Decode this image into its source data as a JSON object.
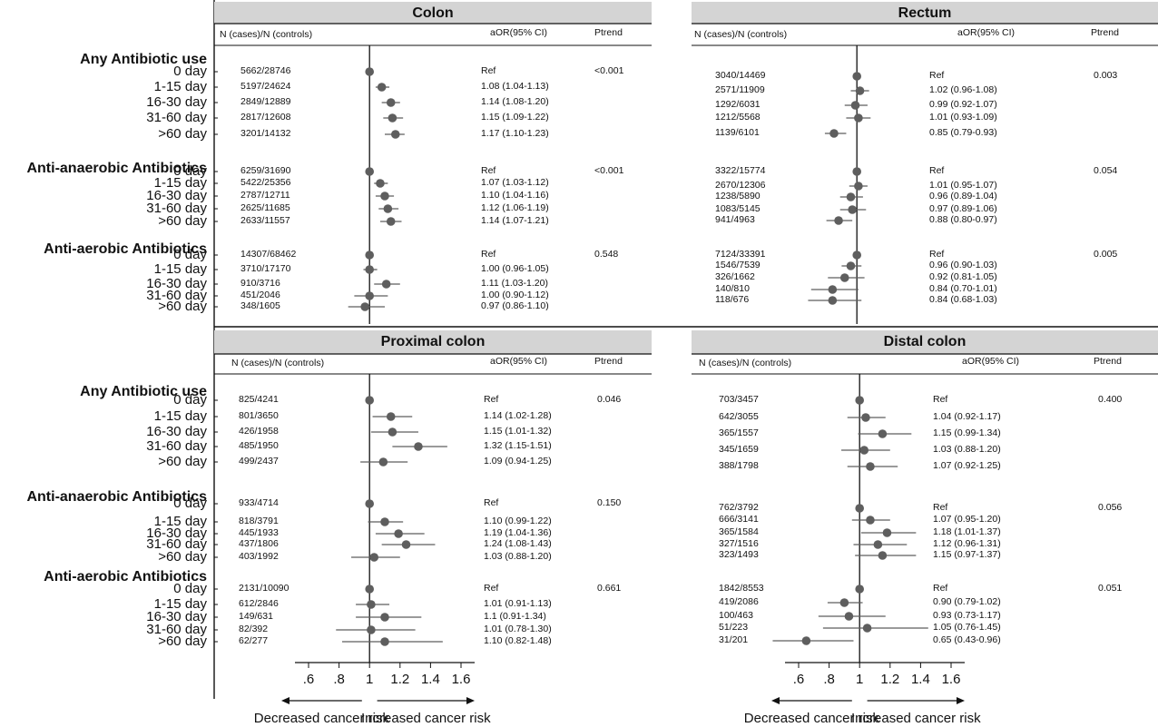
{
  "groups": [
    {
      "label": "Any Antibiotic use",
      "rows": [
        "0 day",
        "1-15 day",
        "16-30 day",
        "31-60 day",
        ">60 day"
      ]
    },
    {
      "label": "Anti-anaerobic Antibiotics",
      "rows": [
        "0 day",
        "1-15 day",
        "16-30 day",
        "31-60 day",
        ">60 day"
      ]
    },
    {
      "label": "Anti-aerobic Antibiotics",
      "rows": [
        "0 day",
        "1-15 day",
        "16-30 day",
        "31-60 day",
        ">60 day"
      ]
    }
  ],
  "headers": {
    "n": "N (cases)/N (controls)",
    "aor": "aOR(95% CI)",
    "ptrend": "Ptrend"
  },
  "x_ticks": [
    ".6",
    ".8",
    "1",
    "1.2",
    "1.4",
    "1.6"
  ],
  "direction": {
    "decreased": "Decreased cancer risk",
    "increased": "Increased cancer risk"
  },
  "colors": {
    "marker": "#5e5e5e",
    "ci_line": "#5e5e5e",
    "title_bar": "#d4d4d4",
    "ref_line": "#111111"
  },
  "chart_data": [
    {
      "type": "scatter",
      "title": "Colon",
      "xlim": [
        0.6,
        1.6
      ],
      "groups": [
        {
          "label": "Any Antibiotic use",
          "ptrend": "<0.001",
          "rows": [
            {
              "label": "0 day",
              "n": "5662/28746",
              "aor_text": "Ref",
              "or": 1.0,
              "lo": null,
              "hi": null
            },
            {
              "label": "1-15 day",
              "n": "5197/24624",
              "aor_text": "1.08 (1.04-1.13)",
              "or": 1.08,
              "lo": 1.04,
              "hi": 1.13
            },
            {
              "label": "16-30 day",
              "n": "2849/12889",
              "aor_text": "1.14 (1.08-1.20)",
              "or": 1.14,
              "lo": 1.08,
              "hi": 1.2
            },
            {
              "label": "31-60 day",
              "n": "2817/12608",
              "aor_text": "1.15 (1.09-1.22)",
              "or": 1.15,
              "lo": 1.09,
              "hi": 1.22
            },
            {
              "label": ">60 day",
              "n": "3201/14132",
              "aor_text": "1.17 (1.10-1.23)",
              "or": 1.17,
              "lo": 1.1,
              "hi": 1.23
            }
          ]
        },
        {
          "label": "Anti-anaerobic Antibiotics",
          "ptrend": "<0.001",
          "rows": [
            {
              "label": "0 day",
              "n": "6259/31690",
              "aor_text": "Ref",
              "or": 1.0,
              "lo": null,
              "hi": null
            },
            {
              "label": "1-15 day",
              "n": "5422/25356",
              "aor_text": "1.07 (1.03-1.12)",
              "or": 1.07,
              "lo": 1.03,
              "hi": 1.12
            },
            {
              "label": "16-30 day",
              "n": "2787/12711",
              "aor_text": "1.10 (1.04-1.16)",
              "or": 1.1,
              "lo": 1.04,
              "hi": 1.16
            },
            {
              "label": "31-60 day",
              "n": "2625/11685",
              "aor_text": "1.12 (1.06-1.19)",
              "or": 1.12,
              "lo": 1.06,
              "hi": 1.19
            },
            {
              "label": ">60 day",
              "n": "2633/11557",
              "aor_text": "1.14 (1.07-1.21)",
              "or": 1.14,
              "lo": 1.07,
              "hi": 1.21
            }
          ]
        },
        {
          "label": "Anti-aerobic Antibiotics",
          "ptrend": "0.548",
          "rows": [
            {
              "label": "0 day",
              "n": "14307/68462",
              "aor_text": "Ref",
              "or": 1.0,
              "lo": null,
              "hi": null
            },
            {
              "label": "1-15 day",
              "n": "3710/17170",
              "aor_text": "1.00 (0.96-1.05)",
              "or": 1.0,
              "lo": 0.96,
              "hi": 1.05
            },
            {
              "label": "16-30 day",
              "n": "910/3716",
              "aor_text": "1.11 (1.03-1.20)",
              "or": 1.11,
              "lo": 1.03,
              "hi": 1.2
            },
            {
              "label": "31-60 day",
              "n": "451/2046",
              "aor_text": "1.00 (0.90-1.12)",
              "or": 1.0,
              "lo": 0.9,
              "hi": 1.12
            },
            {
              "label": ">60 day",
              "n": "348/1605",
              "aor_text": "0.97 (0.86-1.10)",
              "or": 0.97,
              "lo": 0.86,
              "hi": 1.1
            }
          ]
        }
      ]
    },
    {
      "type": "scatter",
      "title": "Rectum",
      "xlim": [
        0.6,
        1.6
      ],
      "groups": [
        {
          "label": "Any Antibiotic use",
          "ptrend": "0.003",
          "rows": [
            {
              "label": "0 day",
              "n": "3040/14469",
              "aor_text": "Ref",
              "or": 1.0,
              "lo": null,
              "hi": null
            },
            {
              "label": "1-15 day",
              "n": "2571/11909",
              "aor_text": "1.02 (0.96-1.08)",
              "or": 1.02,
              "lo": 0.96,
              "hi": 1.08
            },
            {
              "label": "16-30 day",
              "n": "1292/6031",
              "aor_text": "0.99 (0.92-1.07)",
              "or": 0.99,
              "lo": 0.92,
              "hi": 1.07
            },
            {
              "label": "31-60 day",
              "n": "1212/5568",
              "aor_text": "1.01 (0.93-1.09)",
              "or": 1.01,
              "lo": 0.93,
              "hi": 1.09
            },
            {
              "label": ">60 day",
              "n": "1139/6101",
              "aor_text": "0.85 (0.79-0.93)",
              "or": 0.85,
              "lo": 0.79,
              "hi": 0.93
            }
          ]
        },
        {
          "label": "Anti-anaerobic Antibiotics",
          "ptrend": "0.054",
          "rows": [
            {
              "label": "0 day",
              "n": "3322/15774",
              "aor_text": "Ref",
              "or": 1.0,
              "lo": null,
              "hi": null
            },
            {
              "label": "1-15 day",
              "n": "2670/12306",
              "aor_text": "1.01 (0.95-1.07)",
              "or": 1.01,
              "lo": 0.95,
              "hi": 1.07
            },
            {
              "label": "16-30 day",
              "n": "1238/5890",
              "aor_text": "0.96 (0.89-1.04)",
              "or": 0.96,
              "lo": 0.89,
              "hi": 1.04
            },
            {
              "label": "31-60 day",
              "n": "1083/5145",
              "aor_text": "0.97 (0.89-1.06)",
              "or": 0.97,
              "lo": 0.89,
              "hi": 1.06
            },
            {
              "label": ">60 day",
              "n": "941/4963",
              "aor_text": "0.88 (0.80-0.97)",
              "or": 0.88,
              "lo": 0.8,
              "hi": 0.97
            }
          ]
        },
        {
          "label": "Anti-aerobic Antibiotics",
          "ptrend": "0.005",
          "rows": [
            {
              "label": "0 day",
              "n": "7124/33391",
              "aor_text": "Ref",
              "or": 1.0,
              "lo": null,
              "hi": null
            },
            {
              "label": "1-15 day",
              "n": "1546/7539",
              "aor_text": "0.96 (0.90-1.03)",
              "or": 0.96,
              "lo": 0.9,
              "hi": 1.03
            },
            {
              "label": "16-30 day",
              "n": "326/1662",
              "aor_text": "0.92 (0.81-1.05)",
              "or": 0.92,
              "lo": 0.81,
              "hi": 1.05
            },
            {
              "label": "31-60 day",
              "n": "140/810",
              "aor_text": "0.84 (0.70-1.01)",
              "or": 0.84,
              "lo": 0.7,
              "hi": 1.01
            },
            {
              "label": ">60 day",
              "n": "118/676",
              "aor_text": "0.84 (0.68-1.03)",
              "or": 0.84,
              "lo": 0.68,
              "hi": 1.03
            }
          ]
        }
      ]
    },
    {
      "type": "scatter",
      "title": "Proximal colon",
      "xlim": [
        0.6,
        1.6
      ],
      "groups": [
        {
          "label": "Any Antibiotic use",
          "ptrend": "0.046",
          "rows": [
            {
              "label": "0 day",
              "n": "825/4241",
              "aor_text": "Ref",
              "or": 1.0,
              "lo": null,
              "hi": null
            },
            {
              "label": "1-15 day",
              "n": "801/3650",
              "aor_text": "1.14 (1.02-1.28)",
              "or": 1.14,
              "lo": 1.02,
              "hi": 1.28
            },
            {
              "label": "16-30 day",
              "n": "426/1958",
              "aor_text": "1.15 (1.01-1.32)",
              "or": 1.15,
              "lo": 1.01,
              "hi": 1.32
            },
            {
              "label": "31-60 day",
              "n": "485/1950",
              "aor_text": "1.32 (1.15-1.51)",
              "or": 1.32,
              "lo": 1.15,
              "hi": 1.51
            },
            {
              "label": ">60 day",
              "n": "499/2437",
              "aor_text": "1.09 (0.94-1.25)",
              "or": 1.09,
              "lo": 0.94,
              "hi": 1.25
            }
          ]
        },
        {
          "label": "Anti-anaerobic Antibiotics",
          "ptrend": "0.150",
          "rows": [
            {
              "label": "0 day",
              "n": "933/4714",
              "aor_text": "Ref",
              "or": 1.0,
              "lo": null,
              "hi": null
            },
            {
              "label": "1-15 day",
              "n": "818/3791",
              "aor_text": "1.10 (0.99-1.22)",
              "or": 1.1,
              "lo": 0.99,
              "hi": 1.22
            },
            {
              "label": "16-30 day",
              "n": "445/1933",
              "aor_text": "1.19 (1.04-1.36)",
              "or": 1.19,
              "lo": 1.04,
              "hi": 1.36
            },
            {
              "label": "31-60 day",
              "n": "437/1806",
              "aor_text": "1.24 (1.08-1.43)",
              "or": 1.24,
              "lo": 1.08,
              "hi": 1.43
            },
            {
              "label": ">60 day",
              "n": "403/1992",
              "aor_text": "1.03 (0.88-1.20)",
              "or": 1.03,
              "lo": 0.88,
              "hi": 1.2
            }
          ]
        },
        {
          "label": "Anti-aerobic Antibiotics",
          "ptrend": "0.661",
          "rows": [
            {
              "label": "0 day",
              "n": "2131/10090",
              "aor_text": "Ref",
              "or": 1.0,
              "lo": null,
              "hi": null
            },
            {
              "label": "1-15 day",
              "n": "612/2846",
              "aor_text": "1.01 (0.91-1.13)",
              "or": 1.01,
              "lo": 0.91,
              "hi": 1.13
            },
            {
              "label": "16-30 day",
              "n": "149/631",
              "aor_text": "1.1 (0.91-1.34)",
              "or": 1.1,
              "lo": 0.91,
              "hi": 1.34
            },
            {
              "label": "31-60 day",
              "n": "82/392",
              "aor_text": "1.01 (0.78-1.30)",
              "or": 1.01,
              "lo": 0.78,
              "hi": 1.3
            },
            {
              "label": ">60 day",
              "n": "62/277",
              "aor_text": "1.10 (0.82-1.48)",
              "or": 1.1,
              "lo": 0.82,
              "hi": 1.48
            }
          ]
        }
      ]
    },
    {
      "type": "scatter",
      "title": "Distal colon",
      "xlim": [
        0.6,
        1.6
      ],
      "groups": [
        {
          "label": "Any Antibiotic use",
          "ptrend": "0.400",
          "rows": [
            {
              "label": "0 day",
              "n": "703/3457",
              "aor_text": "Ref",
              "or": 1.0,
              "lo": null,
              "hi": null
            },
            {
              "label": "1-15 day",
              "n": "642/3055",
              "aor_text": "1.04 (0.92-1.17)",
              "or": 1.04,
              "lo": 0.92,
              "hi": 1.17
            },
            {
              "label": "16-30 day",
              "n": "365/1557",
              "aor_text": "1.15 (0.99-1.34)",
              "or": 1.15,
              "lo": 0.99,
              "hi": 1.34
            },
            {
              "label": "31-60 day",
              "n": "345/1659",
              "aor_text": "1.03 (0.88-1.20)",
              "or": 1.03,
              "lo": 0.88,
              "hi": 1.2
            },
            {
              "label": ">60 day",
              "n": "388/1798",
              "aor_text": "1.07 (0.92-1.25)",
              "or": 1.07,
              "lo": 0.92,
              "hi": 1.25
            }
          ]
        },
        {
          "label": "Anti-anaerobic Antibiotics",
          "ptrend": "0.056",
          "rows": [
            {
              "label": "0 day",
              "n": "762/3792",
              "aor_text": "Ref",
              "or": 1.0,
              "lo": null,
              "hi": null
            },
            {
              "label": "1-15 day",
              "n": "666/3141",
              "aor_text": "1.07 (0.95-1.20)",
              "or": 1.07,
              "lo": 0.95,
              "hi": 1.2
            },
            {
              "label": "16-30 day",
              "n": "365/1584",
              "aor_text": "1.18 (1.01-1.37)",
              "or": 1.18,
              "lo": 1.01,
              "hi": 1.37
            },
            {
              "label": "31-60 day",
              "n": "327/1516",
              "aor_text": "1.12 (0.96-1.31)",
              "or": 1.12,
              "lo": 0.96,
              "hi": 1.31
            },
            {
              "label": ">60 day",
              "n": "323/1493",
              "aor_text": "1.15 (0.97-1.37)",
              "or": 1.15,
              "lo": 0.97,
              "hi": 1.37
            }
          ]
        },
        {
          "label": "Anti-aerobic Antibiotics",
          "ptrend": "0.051",
          "rows": [
            {
              "label": "0 day",
              "n": "1842/8553",
              "aor_text": "Ref",
              "or": 1.0,
              "lo": null,
              "hi": null
            },
            {
              "label": "1-15 day",
              "n": "419/2086",
              "aor_text": "0.90 (0.79-1.02)",
              "or": 0.9,
              "lo": 0.79,
              "hi": 1.02
            },
            {
              "label": "16-30 day",
              "n": "100/463",
              "aor_text": "0.93 (0.73-1.17)",
              "or": 0.93,
              "lo": 0.73,
              "hi": 1.17
            },
            {
              "label": "31-60 day",
              "n": "51/223",
              "aor_text": "1.05 (0.76-1.45)",
              "or": 1.05,
              "lo": 0.76,
              "hi": 1.45
            },
            {
              "label": ">60 day",
              "n": "31/201",
              "aor_text": "0.65 (0.43-0.96)",
              "or": 0.65,
              "lo": 0.43,
              "hi": 0.96
            }
          ]
        }
      ]
    }
  ]
}
